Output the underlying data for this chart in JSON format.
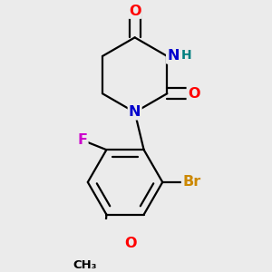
{
  "background_color": "#ebebeb",
  "bond_color": "#000000",
  "bond_width": 1.6,
  "atom_colors": {
    "O": "#ff0000",
    "N": "#0000cd",
    "NH": "#008080",
    "F": "#cc00cc",
    "Br": "#cc8800",
    "C": "#000000",
    "H": "#555555"
  },
  "font_size_atoms": 11.5,
  "font_size_small": 10
}
